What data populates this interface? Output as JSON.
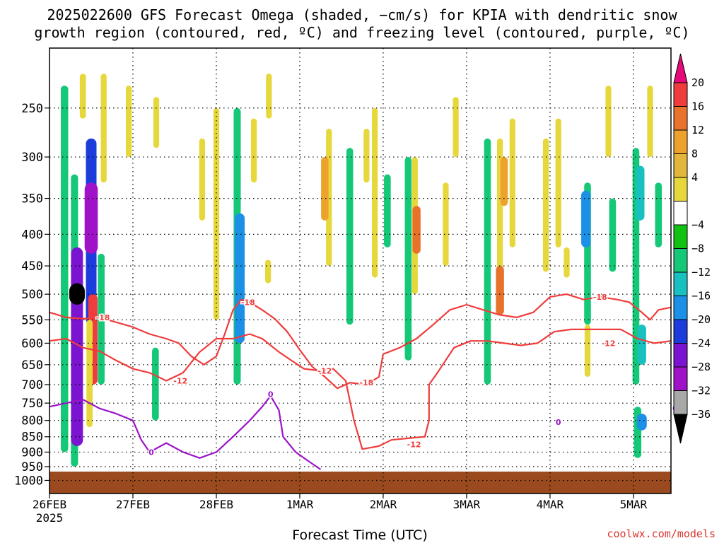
{
  "title_lines": [
    "2025022600 GFS Forecast Omega (shaded, −cm/s) for KPIA with dendritic snow",
    "growth region (contoured, red, ºC) and freezing level (contoured, purple, ºC)"
  ],
  "credit": "coolwx.com/models",
  "chart_data": {
    "type": "heatmap",
    "xlabel": "Forecast Time (UTC)",
    "ylabel": "",
    "x_ticks": [
      "26FEB",
      "27FEB",
      "28FEB",
      "1MAR",
      "2MAR",
      "3MAR",
      "4MAR",
      "5MAR"
    ],
    "x_tick_year": "2025",
    "x_range_days": [
      0,
      7.45
    ],
    "y_ticks": [
      "250",
      "300",
      "350",
      "400",
      "450",
      "500",
      "550",
      "600",
      "650",
      "700",
      "750",
      "800",
      "850",
      "900",
      "950",
      "1000"
    ],
    "y_scale": "log-pressure",
    "y_range_hpa": [
      200,
      1050
    ],
    "grid": true,
    "colorbar": {
      "ticks": [
        "20",
        "16",
        "12",
        "8",
        "4",
        "−4",
        "−8",
        "−12",
        "−16",
        "−20",
        "−24",
        "−28",
        "−32",
        "−36"
      ],
      "colors": [
        "#e60a78",
        "#f03c3c",
        "#e8722c",
        "#eda22e",
        "#e2b63a",
        "#e6d83c",
        "#ffffff",
        "#12c212",
        "#14c878",
        "#18c0c0",
        "#1c90e6",
        "#1c3cdc",
        "#7a14d0",
        "#a012c8",
        "#a8a8a8",
        "#000000"
      ]
    },
    "omega_blobs": [
      {
        "x": 0.18,
        "p0": 230,
        "p1": 900,
        "value": -10
      },
      {
        "x": 0.3,
        "p0": 320,
        "p1": 950,
        "value": -9
      },
      {
        "x": 0.33,
        "p0": 420,
        "p1": 880,
        "value": -24
      },
      {
        "x": 0.33,
        "p0": 480,
        "p1": 520,
        "value": -36
      },
      {
        "x": 0.5,
        "p0": 280,
        "p1": 560,
        "value": -20
      },
      {
        "x": 0.5,
        "p0": 330,
        "p1": 430,
        "value": -28
      },
      {
        "x": 0.52,
        "p0": 500,
        "p1": 700,
        "value": 16
      },
      {
        "x": 0.48,
        "p0": 550,
        "p1": 820,
        "value": 6
      },
      {
        "x": 0.62,
        "p0": 430,
        "p1": 700,
        "value": -8
      },
      {
        "x": 0.4,
        "p0": 220,
        "p1": 260,
        "value": 6
      },
      {
        "x": 0.65,
        "p0": 220,
        "p1": 330,
        "value": 5
      },
      {
        "x": 0.95,
        "p0": 230,
        "p1": 300,
        "value": 5
      },
      {
        "x": 1.28,
        "p0": 240,
        "p1": 290,
        "value": 5
      },
      {
        "x": 1.27,
        "p0": 610,
        "p1": 800,
        "value": -8
      },
      {
        "x": 1.83,
        "p0": 280,
        "p1": 380,
        "value": 5
      },
      {
        "x": 2.25,
        "p0": 250,
        "p1": 700,
        "value": -9
      },
      {
        "x": 2.28,
        "p0": 370,
        "p1": 600,
        "value": -18
      },
      {
        "x": 2.0,
        "p0": 250,
        "p1": 550,
        "value": 5
      },
      {
        "x": 2.45,
        "p0": 260,
        "p1": 330,
        "value": 5
      },
      {
        "x": 2.63,
        "p0": 220,
        "p1": 260,
        "value": 5
      },
      {
        "x": 2.62,
        "p0": 440,
        "p1": 480,
        "value": 5
      },
      {
        "x": 3.35,
        "p0": 270,
        "p1": 450,
        "value": 5
      },
      {
        "x": 3.3,
        "p0": 300,
        "p1": 380,
        "value": 10
      },
      {
        "x": 3.6,
        "p0": 290,
        "p1": 560,
        "value": -8
      },
      {
        "x": 3.8,
        "p0": 270,
        "p1": 330,
        "value": 5
      },
      {
        "x": 3.9,
        "p0": 250,
        "p1": 470,
        "value": 5
      },
      {
        "x": 4.3,
        "p0": 300,
        "p1": 640,
        "value": -8
      },
      {
        "x": 4.38,
        "p0": 300,
        "p1": 500,
        "value": 5
      },
      {
        "x": 4.4,
        "p0": 360,
        "p1": 430,
        "value": 12
      },
      {
        "x": 4.75,
        "p0": 330,
        "p1": 450,
        "value": 5
      },
      {
        "x": 4.87,
        "p0": 240,
        "p1": 300,
        "value": 5
      },
      {
        "x": 5.4,
        "p0": 280,
        "p1": 500,
        "value": 5
      },
      {
        "x": 5.45,
        "p0": 300,
        "p1": 360,
        "value": 10
      },
      {
        "x": 5.25,
        "p0": 280,
        "p1": 700,
        "value": -8
      },
      {
        "x": 5.4,
        "p0": 450,
        "p1": 540,
        "value": 12
      },
      {
        "x": 5.55,
        "p0": 260,
        "p1": 420,
        "value": 5
      },
      {
        "x": 5.95,
        "p0": 280,
        "p1": 460,
        "value": 5
      },
      {
        "x": 6.1,
        "p0": 260,
        "p1": 420,
        "value": 5
      },
      {
        "x": 6.45,
        "p0": 330,
        "p1": 560,
        "value": -8
      },
      {
        "x": 6.43,
        "p0": 340,
        "p1": 420,
        "value": -16
      },
      {
        "x": 6.7,
        "p0": 230,
        "p1": 300,
        "value": 5
      },
      {
        "x": 6.75,
        "p0": 350,
        "p1": 460,
        "value": -8
      },
      {
        "x": 7.03,
        "p0": 290,
        "p1": 700,
        "value": -8
      },
      {
        "x": 7.08,
        "p0": 310,
        "p1": 380,
        "value": -14
      },
      {
        "x": 7.1,
        "p0": 560,
        "p1": 650,
        "value": -14
      },
      {
        "x": 7.05,
        "p0": 760,
        "p1": 920,
        "value": -10
      },
      {
        "x": 7.1,
        "p0": 780,
        "p1": 830,
        "value": -18
      },
      {
        "x": 7.2,
        "p0": 230,
        "p1": 300,
        "value": 5
      },
      {
        "x": 7.3,
        "p0": 330,
        "p1": 420,
        "value": -8
      },
      {
        "x": 6.45,
        "p0": 560,
        "p1": 680,
        "value": 5
      },
      {
        "x": 6.2,
        "p0": 420,
        "p1": 470,
        "value": 5
      },
      {
        "x": 4.05,
        "p0": 320,
        "p1": 420,
        "value": -8
      }
    ],
    "contours": [
      {
        "name": "-18",
        "color": "#f03c3c",
        "label_positions": [
          {
            "x": 0.64,
            "p": 545
          },
          {
            "x": 2.38,
            "p": 515
          },
          {
            "x": 3.8,
            "p": 695
          },
          {
            "x": 6.6,
            "p": 505
          }
        ],
        "points": [
          [
            0,
            535
          ],
          [
            0.2,
            545
          ],
          [
            0.4,
            548
          ],
          [
            0.6,
            545
          ],
          [
            0.8,
            555
          ],
          [
            1.0,
            565
          ],
          [
            1.2,
            580
          ],
          [
            1.4,
            590
          ],
          [
            1.55,
            600
          ],
          [
            1.7,
            630
          ],
          [
            1.85,
            650
          ],
          [
            2.0,
            630
          ],
          [
            2.1,
            580
          ],
          [
            2.2,
            530
          ],
          [
            2.3,
            510
          ],
          [
            2.4,
            515
          ],
          [
            2.55,
            530
          ],
          [
            2.7,
            548
          ],
          [
            2.85,
            575
          ],
          [
            3.0,
            615
          ],
          [
            3.15,
            655
          ],
          [
            3.3,
            680
          ],
          [
            3.45,
            710
          ],
          [
            3.6,
            695
          ],
          [
            3.8,
            700
          ],
          [
            3.95,
            680
          ],
          [
            4.0,
            625
          ],
          [
            4.2,
            610
          ],
          [
            4.4,
            590
          ],
          [
            4.6,
            560
          ],
          [
            4.8,
            530
          ],
          [
            5.0,
            520
          ],
          [
            5.2,
            530
          ],
          [
            5.4,
            540
          ],
          [
            5.6,
            545
          ],
          [
            5.8,
            535
          ],
          [
            6.0,
            505
          ],
          [
            6.2,
            500
          ],
          [
            6.4,
            510
          ],
          [
            6.6,
            505
          ],
          [
            6.8,
            510
          ],
          [
            6.95,
            515
          ],
          [
            7.1,
            535
          ],
          [
            7.2,
            550
          ],
          [
            7.3,
            530
          ],
          [
            7.45,
            525
          ]
        ]
      },
      {
        "name": "-12",
        "color": "#f03c3c",
        "label_positions": [
          {
            "x": 1.57,
            "p": 690
          },
          {
            "x": 3.3,
            "p": 665
          },
          {
            "x": 4.37,
            "p": 875
          },
          {
            "x": 6.7,
            "p": 600
          }
        ],
        "points": [
          [
            0,
            595
          ],
          [
            0.2,
            590
          ],
          [
            0.4,
            610
          ],
          [
            0.6,
            618
          ],
          [
            0.8,
            640
          ],
          [
            1.0,
            660
          ],
          [
            1.2,
            670
          ],
          [
            1.4,
            690
          ],
          [
            1.6,
            670
          ],
          [
            1.8,
            620
          ],
          [
            2.0,
            590
          ],
          [
            2.2,
            590
          ],
          [
            2.4,
            580
          ],
          [
            2.55,
            590
          ],
          [
            2.75,
            620
          ],
          [
            2.9,
            640
          ],
          [
            3.05,
            660
          ],
          [
            3.25,
            665
          ],
          [
            3.4,
            660
          ],
          [
            3.55,
            690
          ],
          [
            3.65,
            800
          ],
          [
            3.75,
            890
          ],
          [
            3.95,
            880
          ],
          [
            4.1,
            860
          ],
          [
            4.3,
            855
          ],
          [
            4.5,
            850
          ],
          [
            4.55,
            800
          ],
          [
            4.55,
            700
          ],
          [
            4.65,
            670
          ],
          [
            4.85,
            610
          ],
          [
            5.05,
            595
          ],
          [
            5.25,
            595
          ],
          [
            5.45,
            600
          ],
          [
            5.65,
            605
          ],
          [
            5.85,
            600
          ],
          [
            6.05,
            575
          ],
          [
            6.25,
            570
          ],
          [
            6.45,
            570
          ],
          [
            6.65,
            570
          ],
          [
            6.85,
            570
          ],
          [
            7.05,
            590
          ],
          [
            7.25,
            600
          ],
          [
            7.45,
            595
          ]
        ]
      },
      {
        "name": "0",
        "color": "#9a14c8",
        "label_positions": [
          {
            "x": 1.22,
            "p": 900
          },
          {
            "x": 2.65,
            "p": 725
          },
          {
            "x": 6.1,
            "p": 805
          },
          {
            "x": 7.5,
            "p": 765
          }
        ],
        "points": [
          [
            0,
            760
          ],
          [
            0.2,
            750
          ],
          [
            0.4,
            740
          ],
          [
            0.6,
            765
          ],
          [
            0.8,
            780
          ],
          [
            1.0,
            800
          ],
          [
            1.1,
            860
          ],
          [
            1.2,
            900
          ],
          [
            1.4,
            870
          ],
          [
            1.6,
            900
          ],
          [
            1.8,
            920
          ],
          [
            2.0,
            900
          ],
          [
            2.2,
            850
          ],
          [
            2.4,
            800
          ],
          [
            2.55,
            760
          ],
          [
            2.65,
            730
          ],
          [
            2.75,
            770
          ],
          [
            2.8,
            850
          ],
          [
            2.95,
            900
          ],
          [
            3.1,
            930
          ],
          [
            3.25,
            960
          ]
        ]
      }
    ]
  }
}
